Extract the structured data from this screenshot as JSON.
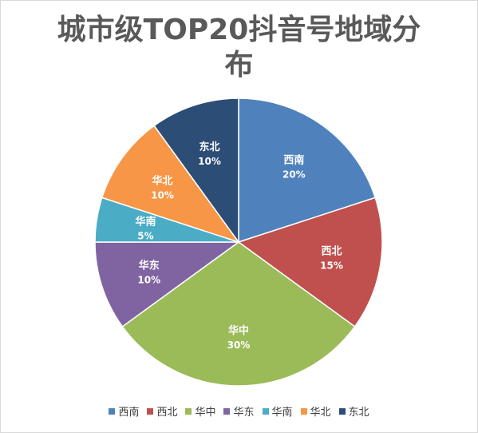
{
  "chart_data": {
    "type": "pie",
    "title": "城市级TOP20抖音号地域分布",
    "categories": [
      "西南",
      "西北",
      "华中",
      "华东",
      "华南",
      "华北",
      "东北"
    ],
    "values": [
      20,
      15,
      30,
      10,
      5,
      10,
      10
    ],
    "value_labels": [
      "20%",
      "15%",
      "30%",
      "10%",
      "5%",
      "10%",
      "10%"
    ],
    "colors": [
      "#4f81bd",
      "#c0504d",
      "#9bbb59",
      "#8064a2",
      "#4bacc6",
      "#f79646",
      "#2c4d75"
    ],
    "legend_position": "bottom",
    "start_angle": "12 o'clock",
    "direction": "clockwise"
  }
}
